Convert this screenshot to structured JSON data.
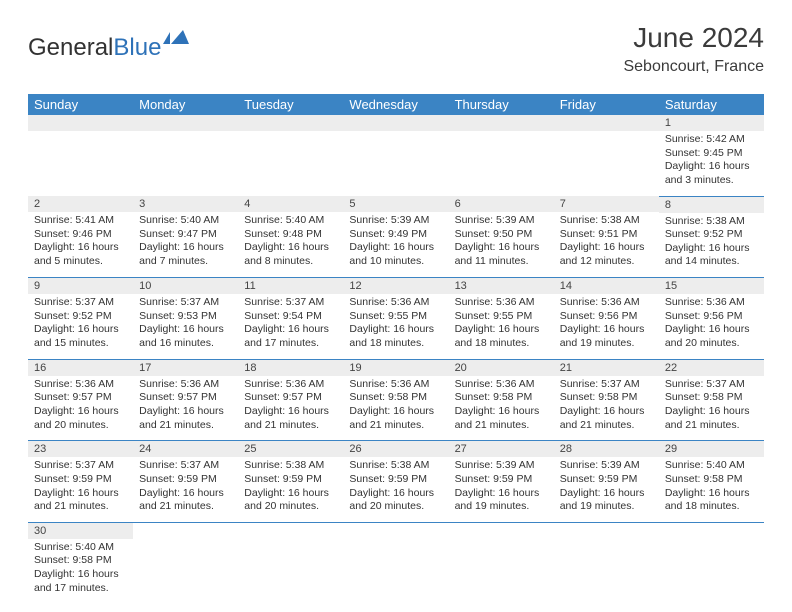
{
  "brand": {
    "part1": "General",
    "part2": "Blue"
  },
  "title": "June 2024",
  "location": "Seboncourt, France",
  "colors": {
    "header_bg": "#3b84c4",
    "header_text": "#ffffff",
    "daynum_bg": "#ededed",
    "cell_border": "#3b84c4",
    "text": "#333333",
    "brand_blue": "#2e72b8"
  },
  "weekdays": [
    "Sunday",
    "Monday",
    "Tuesday",
    "Wednesday",
    "Thursday",
    "Friday",
    "Saturday"
  ],
  "weeks": [
    [
      null,
      null,
      null,
      null,
      null,
      null,
      {
        "d": "1",
        "sr": "5:42 AM",
        "ss": "9:45 PM",
        "dl": "16 hours and 3 minutes."
      }
    ],
    [
      {
        "d": "2",
        "sr": "5:41 AM",
        "ss": "9:46 PM",
        "dl": "16 hours and 5 minutes."
      },
      {
        "d": "3",
        "sr": "5:40 AM",
        "ss": "9:47 PM",
        "dl": "16 hours and 7 minutes."
      },
      {
        "d": "4",
        "sr": "5:40 AM",
        "ss": "9:48 PM",
        "dl": "16 hours and 8 minutes."
      },
      {
        "d": "5",
        "sr": "5:39 AM",
        "ss": "9:49 PM",
        "dl": "16 hours and 10 minutes."
      },
      {
        "d": "6",
        "sr": "5:39 AM",
        "ss": "9:50 PM",
        "dl": "16 hours and 11 minutes."
      },
      {
        "d": "7",
        "sr": "5:38 AM",
        "ss": "9:51 PM",
        "dl": "16 hours and 12 minutes."
      },
      {
        "d": "8",
        "sr": "5:38 AM",
        "ss": "9:52 PM",
        "dl": "16 hours and 14 minutes."
      }
    ],
    [
      {
        "d": "9",
        "sr": "5:37 AM",
        "ss": "9:52 PM",
        "dl": "16 hours and 15 minutes."
      },
      {
        "d": "10",
        "sr": "5:37 AM",
        "ss": "9:53 PM",
        "dl": "16 hours and 16 minutes."
      },
      {
        "d": "11",
        "sr": "5:37 AM",
        "ss": "9:54 PM",
        "dl": "16 hours and 17 minutes."
      },
      {
        "d": "12",
        "sr": "5:36 AM",
        "ss": "9:55 PM",
        "dl": "16 hours and 18 minutes."
      },
      {
        "d": "13",
        "sr": "5:36 AM",
        "ss": "9:55 PM",
        "dl": "16 hours and 18 minutes."
      },
      {
        "d": "14",
        "sr": "5:36 AM",
        "ss": "9:56 PM",
        "dl": "16 hours and 19 minutes."
      },
      {
        "d": "15",
        "sr": "5:36 AM",
        "ss": "9:56 PM",
        "dl": "16 hours and 20 minutes."
      }
    ],
    [
      {
        "d": "16",
        "sr": "5:36 AM",
        "ss": "9:57 PM",
        "dl": "16 hours and 20 minutes."
      },
      {
        "d": "17",
        "sr": "5:36 AM",
        "ss": "9:57 PM",
        "dl": "16 hours and 21 minutes."
      },
      {
        "d": "18",
        "sr": "5:36 AM",
        "ss": "9:57 PM",
        "dl": "16 hours and 21 minutes."
      },
      {
        "d": "19",
        "sr": "5:36 AM",
        "ss": "9:58 PM",
        "dl": "16 hours and 21 minutes."
      },
      {
        "d": "20",
        "sr": "5:36 AM",
        "ss": "9:58 PM",
        "dl": "16 hours and 21 minutes."
      },
      {
        "d": "21",
        "sr": "5:37 AM",
        "ss": "9:58 PM",
        "dl": "16 hours and 21 minutes."
      },
      {
        "d": "22",
        "sr": "5:37 AM",
        "ss": "9:58 PM",
        "dl": "16 hours and 21 minutes."
      }
    ],
    [
      {
        "d": "23",
        "sr": "5:37 AM",
        "ss": "9:59 PM",
        "dl": "16 hours and 21 minutes."
      },
      {
        "d": "24",
        "sr": "5:37 AM",
        "ss": "9:59 PM",
        "dl": "16 hours and 21 minutes."
      },
      {
        "d": "25",
        "sr": "5:38 AM",
        "ss": "9:59 PM",
        "dl": "16 hours and 20 minutes."
      },
      {
        "d": "26",
        "sr": "5:38 AM",
        "ss": "9:59 PM",
        "dl": "16 hours and 20 minutes."
      },
      {
        "d": "27",
        "sr": "5:39 AM",
        "ss": "9:59 PM",
        "dl": "16 hours and 19 minutes."
      },
      {
        "d": "28",
        "sr": "5:39 AM",
        "ss": "9:59 PM",
        "dl": "16 hours and 19 minutes."
      },
      {
        "d": "29",
        "sr": "5:40 AM",
        "ss": "9:58 PM",
        "dl": "16 hours and 18 minutes."
      }
    ],
    [
      {
        "d": "30",
        "sr": "5:40 AM",
        "ss": "9:58 PM",
        "dl": "16 hours and 17 minutes."
      },
      null,
      null,
      null,
      null,
      null,
      null
    ]
  ],
  "labels": {
    "sunrise": "Sunrise:",
    "sunset": "Sunset:",
    "daylight": "Daylight:"
  }
}
